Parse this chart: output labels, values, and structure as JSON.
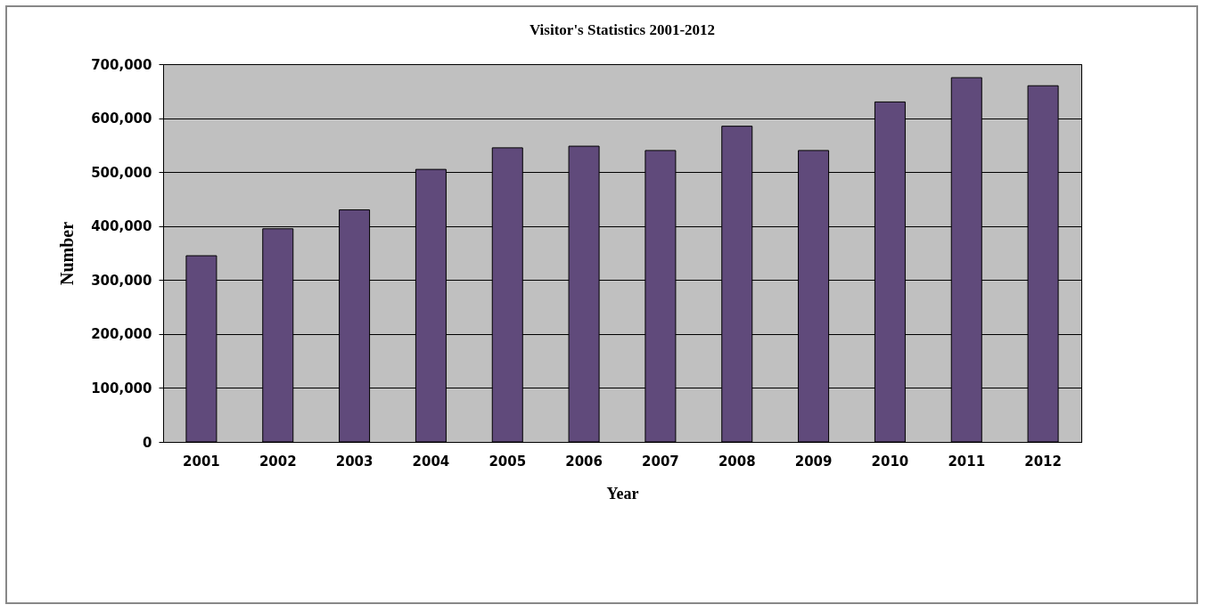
{
  "chart_data": {
    "type": "bar",
    "title": "Visitor's Statistics 2001-2012",
    "xlabel": "Year",
    "ylabel": "Number",
    "categories": [
      "2001",
      "2002",
      "2003",
      "2004",
      "2005",
      "2006",
      "2007",
      "2008",
      "2009",
      "2010",
      "2011",
      "2012"
    ],
    "values": [
      345000,
      395000,
      430000,
      505000,
      545000,
      548000,
      540000,
      585000,
      540000,
      630000,
      675000,
      660000
    ],
    "color": "#604a7b",
    "ylim": [
      0,
      700000
    ],
    "yticks": [
      0,
      {
        "value": 100000,
        "label": "100,000"
      },
      {
        "value": 200000,
        "label": "200,000"
      },
      {
        "value": 300000,
        "label": "300,000"
      },
      {
        "value": 400000,
        "label": "400,000"
      },
      {
        "value": 500000,
        "label": "500,000"
      },
      {
        "value": 600000,
        "label": "600,000"
      },
      {
        "value": 700000,
        "label": "700,000"
      }
    ],
    "grid": "y"
  }
}
